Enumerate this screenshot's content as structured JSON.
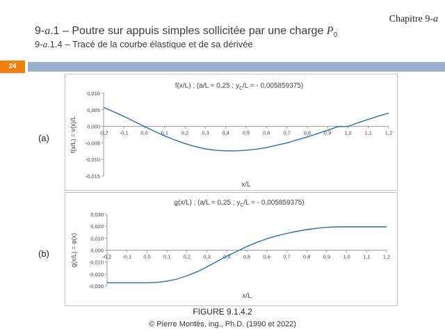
{
  "header": {
    "chapter_label": "Chapitre 9-",
    "chapter_var": "a",
    "title_prefix": "9-",
    "title_var": "a",
    "title_text": ".1 – Poutre sur appuis simples sollicitée par une charge ",
    "title_symbol": "P",
    "title_sub": "0",
    "subtitle_prefix": "9-",
    "subtitle_var": "a",
    "subtitle_text": ".1.4 – Tracé de la courbe élastique et de sa dérivée"
  },
  "page_number": "24",
  "panel_labels": {
    "a": "(a)",
    "b": "(b)"
  },
  "figure_caption": "FIGURE 9.1.4.2",
  "copyright": "© Pierre Montès, ing., Ph.D. (1990 et 2022)",
  "colors": {
    "line": "#2f64c0",
    "axis": "#999999",
    "band": "#9ab0c8",
    "page_badge": "#f07f10"
  },
  "chart_data": [
    {
      "type": "line",
      "title_parts": [
        "f(x/L)  ;  (a/L = 0,25 ; y",
        "C",
        "/L = - 0,005859375)"
      ],
      "xlabel": "x/L",
      "ylabel": "f(x/L) = v(x)/L",
      "xlim": [
        -0.2,
        1.2
      ],
      "ylim": [
        -0.015,
        0.01
      ],
      "x_ticks": [
        "-0,2",
        "-0,1",
        "0,0",
        "0,1",
        "0,2",
        "0,3",
        "0,4",
        "0,5",
        "0,6",
        "0,7",
        "0,8",
        "0,9",
        "1,0",
        "1,1",
        "1,2"
      ],
      "y_ticks": [
        "0,010",
        "0,005",
        "0,000",
        "-0,005",
        "-0,010",
        "-0,015"
      ],
      "grid": false,
      "series": [
        {
          "x": [
            -0.2,
            -0.15,
            -0.1,
            -0.05,
            0,
            0.05,
            0.1,
            0.15,
            0.2,
            0.25,
            0.3,
            0.35,
            0.4,
            0.45,
            0.5,
            0.55,
            0.6,
            0.65,
            0.7,
            0.75,
            0.8,
            0.85,
            0.9,
            0.95,
            1.0,
            1.05,
            1.1,
            1.15,
            1.2
          ],
          "values": [
            0.0057,
            0.0044,
            0.003,
            0.0015,
            0.0,
            -0.0015,
            -0.0029,
            -0.0041,
            -0.0052,
            -0.0061,
            -0.0068,
            -0.0072,
            -0.0074,
            -0.0074,
            -0.0072,
            -0.0068,
            -0.0063,
            -0.0056,
            -0.0047,
            -0.0037,
            -0.0026,
            -0.0014,
            -0.0002,
            0.0008,
            0.0,
            0.0011,
            0.0021,
            0.0031,
            0.004
          ]
        }
      ]
    },
    {
      "type": "line",
      "title_parts": [
        "g(x/L)  ;  (a/L = 0,25 ; y",
        "C",
        "/L = - 0,005859375)"
      ],
      "xlabel": "x/L",
      "ylabel": "g(x/L) = φ(x)",
      "xlim": [
        -0.2,
        1.2
      ],
      "ylim": [
        -0.03,
        0.03
      ],
      "x_ticks": [
        "-0,2",
        "-0,1",
        "0,0",
        "0,1",
        "0,2",
        "0,3",
        "0,4",
        "0,5",
        "0,6",
        "0,7",
        "0,8",
        "0,9",
        "1,0",
        "1,1",
        "1,2"
      ],
      "y_ticks": [
        "0,030",
        "0,020",
        "0,010",
        "0,000",
        "-0,010",
        "-0,020",
        "-0,030"
      ],
      "grid": false,
      "series": [
        {
          "x": [
            -0.2,
            -0.1,
            0.0,
            0.05,
            0.1,
            0.15,
            0.2,
            0.25,
            0.3,
            0.35,
            0.4,
            0.45,
            0.5,
            0.55,
            0.6,
            0.65,
            0.7,
            0.75,
            0.8,
            0.85,
            0.9,
            0.95,
            1.0,
            1.1,
            1.2
          ],
          "values": [
            -0.0273,
            -0.0273,
            -0.0273,
            -0.027,
            -0.026,
            -0.0242,
            -0.0215,
            -0.0182,
            -0.014,
            -0.0095,
            -0.005,
            -0.001,
            0.003,
            0.0065,
            0.0095,
            0.012,
            0.014,
            0.0158,
            0.0172,
            0.0183,
            0.0191,
            0.0195,
            0.0195,
            0.0195,
            0.0195
          ]
        }
      ]
    }
  ]
}
